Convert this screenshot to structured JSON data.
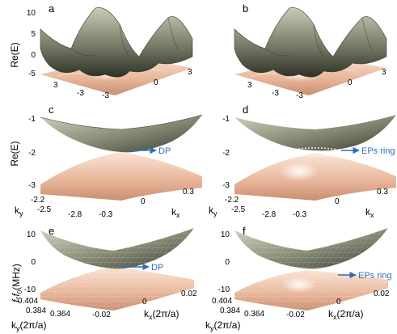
{
  "colors": {
    "upper_band": "#8a8e78",
    "upper_band_light": "#d3d5c3",
    "upper_band_dark": "#3b3e30",
    "lower_band": "#e8b79d",
    "lower_band_light": "#fbe7da",
    "annotation": "#2f6fb8"
  },
  "panels": {
    "a": {
      "letter": "a",
      "ylabel": "Re(E)",
      "zticks": [
        "10",
        "5",
        "0",
        "-5"
      ],
      "ky_ticks": [
        "3",
        "-3"
      ],
      "kx_ticks": [
        "-3",
        "0",
        "3"
      ]
    },
    "b": {
      "letter": "b",
      "ky_ticks": [
        "3",
        "-3"
      ],
      "kx_ticks": [
        "-3",
        "0",
        "3"
      ]
    },
    "c": {
      "letter": "c",
      "ylabel": "Re(E)",
      "zticks": [
        "-1",
        "-2",
        "-3"
      ],
      "ky_axis": "k",
      "ky_sub": "y",
      "kx_axis": "k",
      "kx_sub": "x",
      "ky_ticks": [
        "-2.2",
        "-2.5",
        "-2.8"
      ],
      "kx_ticks": [
        "-0.3",
        "0",
        "0.3"
      ],
      "annotation": "DP"
    },
    "d": {
      "letter": "d",
      "zticks": [
        "-1",
        "-2",
        "-3"
      ],
      "ky_axis": "k",
      "ky_sub": "y",
      "kx_axis": "k",
      "kx_sub": "x",
      "ky_ticks": [
        "-2.2",
        "-2.5",
        "-2.8"
      ],
      "kx_ticks": [
        "-0.3",
        "0",
        "0.3"
      ],
      "annotation": "EPs ring"
    },
    "e": {
      "letter": "e",
      "ylabel_f": "f",
      "ylabel_mid": "-f",
      "ylabel_sub": "0",
      "ylabel_unit": "(MHz)",
      "zticks": [
        "10",
        "0",
        "-10"
      ],
      "ky_axis": "k",
      "ky_sub": "y",
      "ky_unit": "(2π/a)",
      "kx_axis": "k",
      "kx_sub": "x",
      "kx_unit": "(2π/a)",
      "ky_ticks": [
        "0.404",
        "0.384",
        "0.364"
      ],
      "kx_ticks": [
        "-0.02",
        "0",
        "0.02"
      ],
      "annotation": "DP"
    },
    "f": {
      "letter": "f",
      "zticks": [
        "10",
        "0",
        "-10"
      ],
      "ky_axis": "k",
      "ky_sub": "y",
      "ky_unit": "(2π/a)",
      "kx_axis": "k",
      "kx_sub": "x",
      "kx_unit": "(2π/a)",
      "ky_ticks": [
        "0.404",
        "0.384",
        "0.364"
      ],
      "kx_ticks": [
        "-0.02",
        "0",
        "0.02"
      ],
      "annotation": "EPs ring"
    }
  }
}
